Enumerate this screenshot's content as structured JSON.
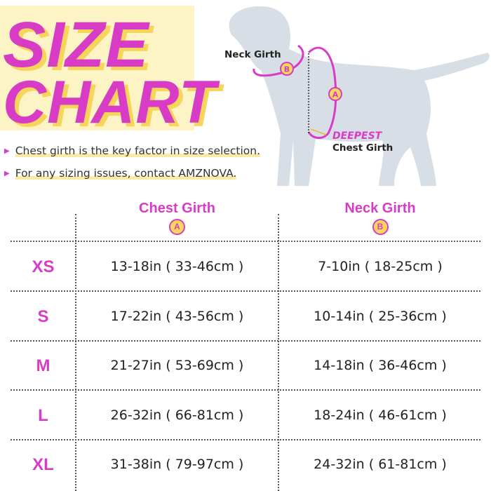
{
  "title": {
    "line1": "SIZE",
    "line2": "CHART"
  },
  "bullets": [
    "Chest girth is the key factor in size selection.",
    "For any sizing issues, contact AMZNOVA."
  ],
  "diagram": {
    "neck_label": "Neck Girth",
    "neck_badge": "B",
    "chest_badge": "A",
    "deepest_label": "DEEPEST",
    "chest_label": "Chest Girth"
  },
  "table": {
    "columns": [
      {
        "label": "Chest Girth",
        "badge": "A"
      },
      {
        "label": "Neck Girth",
        "badge": "B"
      }
    ],
    "rows": [
      {
        "size": "XS",
        "chest": "13-18in ( 33-46cm )",
        "neck": "7-10in ( 18-25cm )"
      },
      {
        "size": "S",
        "chest": "17-22in ( 43-56cm )",
        "neck": "10-14in ( 25-36cm )"
      },
      {
        "size": "M",
        "chest": "21-27in ( 53-69cm )",
        "neck": "14-18in ( 36-46cm )"
      },
      {
        "size": "L",
        "chest": "26-32in ( 66-81cm )",
        "neck": "18-24in ( 46-61cm )"
      },
      {
        "size": "XL",
        "chest": "31-38in ( 79-97cm )",
        "neck": "24-32in ( 61-81cm )"
      }
    ]
  },
  "colors": {
    "accent": "#d83cc7",
    "highlight": "#fbd85a",
    "dog": "#d8dee6"
  }
}
